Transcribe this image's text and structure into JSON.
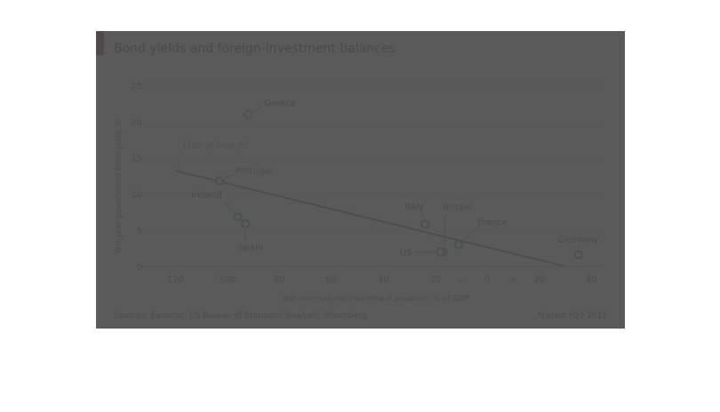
{
  "chart_data": {
    "type": "scatter",
    "title": "Bond yields and foreign-investment balances",
    "xlabel": "Net international investment position†, % of GDP",
    "ylabel": "Ten-year government bond yield, %",
    "x_axis_note": "x axis reversed: negative positions on the left, positive on the right",
    "xlim": [
      -130,
      45
    ],
    "ylim": [
      0,
      25
    ],
    "x_ticks": [
      -120,
      -100,
      -80,
      -60,
      -40,
      -20,
      0,
      20,
      40
    ],
    "x_tick_labels": [
      "120",
      "100",
      "80",
      "60",
      "40",
      "20",
      "0",
      "20",
      "40"
    ],
    "x_sign_labels": [
      "–",
      "+"
    ],
    "y_ticks": [
      0,
      5,
      10,
      15,
      20,
      25
    ],
    "grid": "horizontal",
    "points": [
      {
        "label": "Greece",
        "x": -92,
        "y": 21
      },
      {
        "label": "Portugal",
        "x": -103,
        "y": 11.8
      },
      {
        "label": "Ireland",
        "x": -96,
        "y": 6.8
      },
      {
        "label": "Spain",
        "x": -93,
        "y": 5.9
      },
      {
        "label": "Italy",
        "x": -24,
        "y": 5.8
      },
      {
        "label": "Britain",
        "x": -17,
        "y": 2.0
      },
      {
        "label": "US",
        "x": -18,
        "y": 2.0
      },
      {
        "label": "France",
        "x": -11,
        "y": 3.0
      },
      {
        "label": "Germany",
        "x": 35,
        "y": 1.6
      }
    ],
    "fit_line": {
      "label": "Line of best fit",
      "x": [
        -120,
        30
      ],
      "y": [
        13.2,
        0
      ]
    },
    "colors": {
      "marker_stroke": "#00708a",
      "fit_line": "#6b1010",
      "annotation": "#c8502a",
      "zero_tick": "#c0281e",
      "grid": "#cfcfcf",
      "title_mark": "#7a1416"
    }
  },
  "sources": "Sources: Eurostat; US Bureau of Economic Analysis; Bloomberg",
  "footnote": "*Latest   †Q3 2011"
}
